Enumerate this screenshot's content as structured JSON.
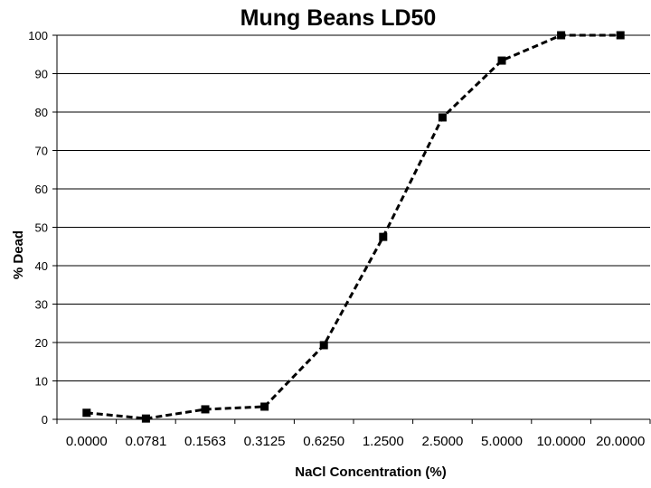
{
  "chart_data": {
    "type": "line",
    "title": "Mung Beans LD50",
    "xlabel": "NaCl Concentration (%)",
    "ylabel": "% Dead",
    "categories": [
      "0.0000",
      "0.0781",
      "0.1563",
      "0.3125",
      "0.6250",
      "1.2500",
      "2.5000",
      "5.0000",
      "10.0000",
      "20.0000"
    ],
    "series": [
      {
        "values": [
          1.7,
          0.2,
          2.6,
          3.3,
          19.3,
          47.5,
          78.6,
          93.4,
          100,
          100
        ]
      }
    ],
    "ylim": [
      0,
      100
    ],
    "yticks": [
      0,
      10,
      20,
      30,
      40,
      50,
      60,
      70,
      80,
      90,
      100
    ],
    "grid": true,
    "legend": "none",
    "line_style": "dashed",
    "marker": "square",
    "colors": {
      "line": "#000000",
      "grid": "#000000",
      "background": "#ffffff"
    }
  }
}
